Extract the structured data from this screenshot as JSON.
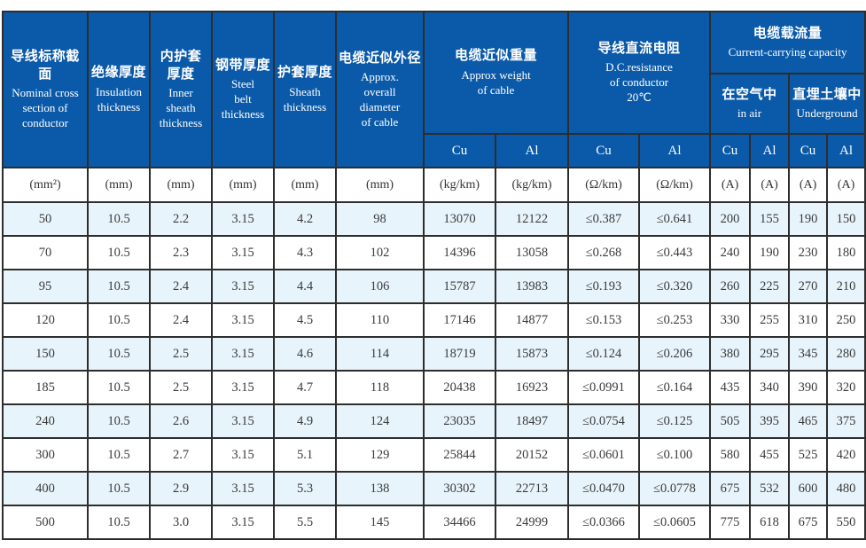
{
  "header": {
    "simple": [
      {
        "zh": "导线标称截面",
        "en": "Nominal cross\nsection of\nconductor"
      },
      {
        "zh": "绝缘厚度",
        "en": "Insulation\nthickness"
      },
      {
        "zh": "内护套\n厚度",
        "en": "Inner\nsheath\nthickness"
      },
      {
        "zh": "钢带厚度",
        "en": "Steel\nbelt\nthickness"
      },
      {
        "zh": "护套厚度",
        "en": "Sheath\nthickness"
      },
      {
        "zh": "电缆近似外径",
        "en": "Approx.\noverall\ndiameter\nof cable"
      }
    ],
    "groups": {
      "weight": {
        "zh": "电缆近似重量",
        "en": "Approx weight\nof cable"
      },
      "resistance": {
        "zh": "导线直流电阻",
        "en": "D.C.resistance\nof conductor\n20℃"
      },
      "capacity": {
        "zh": "电缆载流量",
        "en": "Current-carrying capacity"
      },
      "in_air": {
        "zh": "在空气中",
        "en": "in air"
      },
      "underground": {
        "zh": "直埋土壤中",
        "en": "Underground"
      }
    },
    "metal_row": [
      "Cu",
      "Al",
      "Cu",
      "Al",
      "Cu",
      "Al",
      "Cu",
      "Al"
    ]
  },
  "units": [
    "(mm²)",
    "(mm)",
    "(mm)",
    "(mm)",
    "(mm)",
    "(mm)",
    "(kg/km)",
    "(kg/km)",
    "(Ω/km)",
    "(Ω/km)",
    "(A)",
    "(A)",
    "(A)",
    "(A)"
  ],
  "rows": [
    [
      "50",
      "10.5",
      "2.2",
      "3.15",
      "4.2",
      "98",
      "13070",
      "12122",
      "≤0.387",
      "≤0.641",
      "200",
      "155",
      "190",
      "150"
    ],
    [
      "70",
      "10.5",
      "2.3",
      "3.15",
      "4.3",
      "102",
      "14396",
      "13058",
      "≤0.268",
      "≤0.443",
      "240",
      "190",
      "230",
      "180"
    ],
    [
      "95",
      "10.5",
      "2.4",
      "3.15",
      "4.4",
      "106",
      "15787",
      "13983",
      "≤0.193",
      "≤0.320",
      "260",
      "225",
      "270",
      "210"
    ],
    [
      "120",
      "10.5",
      "2.4",
      "3.15",
      "4.5",
      "110",
      "17146",
      "14877",
      "≤0.153",
      "≤0.253",
      "330",
      "255",
      "310",
      "250"
    ],
    [
      "150",
      "10.5",
      "2.5",
      "3.15",
      "4.6",
      "114",
      "18719",
      "15873",
      "≤0.124",
      "≤0.206",
      "380",
      "295",
      "345",
      "280"
    ],
    [
      "185",
      "10.5",
      "2.5",
      "3.15",
      "4.7",
      "118",
      "20438",
      "16923",
      "≤0.0991",
      "≤0.164",
      "435",
      "340",
      "390",
      "320"
    ],
    [
      "240",
      "10.5",
      "2.6",
      "3.15",
      "4.9",
      "124",
      "23035",
      "18497",
      "≤0.0754",
      "≤0.125",
      "505",
      "395",
      "465",
      "375"
    ],
    [
      "300",
      "10.5",
      "2.7",
      "3.15",
      "5.1",
      "129",
      "25844",
      "20152",
      "≤0.0601",
      "≤0.100",
      "580",
      "455",
      "525",
      "420"
    ],
    [
      "400",
      "10.5",
      "2.9",
      "3.15",
      "5.3",
      "138",
      "30302",
      "22713",
      "≤0.0470",
      "≤0.0778",
      "675",
      "532",
      "600",
      "480"
    ],
    [
      "500",
      "10.5",
      "3.0",
      "3.15",
      "5.5",
      "145",
      "34466",
      "24999",
      "≤0.0366",
      "≤0.0605",
      "775",
      "618",
      "675",
      "550"
    ]
  ],
  "colors": {
    "header_bg": "#0b5aa9",
    "header_text": "#ffffff",
    "row_alt_bg": "#e8f4fb",
    "row_bg": "#ffffff",
    "border": "#2d2d2d",
    "body_text": "#3a3a3a"
  },
  "chart_data": {
    "type": "table",
    "columns": [
      "Nominal cross section of conductor (mm²)",
      "Insulation thickness (mm)",
      "Inner sheath thickness (mm)",
      "Steel belt thickness (mm)",
      "Sheath thickness (mm)",
      "Approx. overall diameter of cable (mm)",
      "Approx weight of cable Cu (kg/km)",
      "Approx weight of cable Al (kg/km)",
      "D.C.resistance of conductor 20℃ Cu (Ω/km)",
      "D.C.resistance of conductor 20℃ Al (Ω/km)",
      "Current-carrying capacity in air Cu (A)",
      "Current-carrying capacity in air Al (A)",
      "Current-carrying capacity Underground Cu (A)",
      "Current-carrying capacity Underground Al (A)"
    ],
    "rows": [
      [
        "50",
        "10.5",
        "2.2",
        "3.15",
        "4.2",
        "98",
        "13070",
        "12122",
        "≤0.387",
        "≤0.641",
        "200",
        "155",
        "190",
        "150"
      ],
      [
        "70",
        "10.5",
        "2.3",
        "3.15",
        "4.3",
        "102",
        "14396",
        "13058",
        "≤0.268",
        "≤0.443",
        "240",
        "190",
        "230",
        "180"
      ],
      [
        "95",
        "10.5",
        "2.4",
        "3.15",
        "4.4",
        "106",
        "15787",
        "13983",
        "≤0.193",
        "≤0.320",
        "260",
        "225",
        "270",
        "210"
      ],
      [
        "120",
        "10.5",
        "2.4",
        "3.15",
        "4.5",
        "110",
        "17146",
        "14877",
        "≤0.153",
        "≤0.253",
        "330",
        "255",
        "310",
        "250"
      ],
      [
        "150",
        "10.5",
        "2.5",
        "3.15",
        "4.6",
        "114",
        "18719",
        "15873",
        "≤0.124",
        "≤0.206",
        "380",
        "295",
        "345",
        "280"
      ],
      [
        "185",
        "10.5",
        "2.5",
        "3.15",
        "4.7",
        "118",
        "20438",
        "16923",
        "≤0.0991",
        "≤0.164",
        "435",
        "340",
        "390",
        "320"
      ],
      [
        "240",
        "10.5",
        "2.6",
        "3.15",
        "4.9",
        "124",
        "23035",
        "18497",
        "≤0.0754",
        "≤0.125",
        "505",
        "395",
        "465",
        "375"
      ],
      [
        "300",
        "10.5",
        "2.7",
        "3.15",
        "5.1",
        "129",
        "25844",
        "20152",
        "≤0.0601",
        "≤0.100",
        "580",
        "455",
        "525",
        "420"
      ],
      [
        "400",
        "10.5",
        "2.9",
        "3.15",
        "5.3",
        "138",
        "30302",
        "22713",
        "≤0.0470",
        "≤0.0778",
        "675",
        "532",
        "600",
        "480"
      ],
      [
        "500",
        "10.5",
        "3.0",
        "3.15",
        "5.5",
        "145",
        "34466",
        "24999",
        "≤0.0366",
        "≤0.0605",
        "775",
        "618",
        "675",
        "550"
      ]
    ]
  }
}
